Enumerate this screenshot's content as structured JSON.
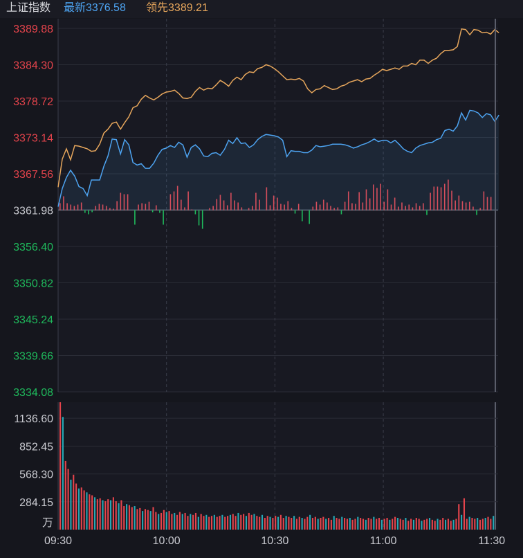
{
  "header": {
    "name": "上证指数",
    "latest_label": "最新",
    "latest_value": "3376.58",
    "lead_label": "领先",
    "lead_value": "3389.21"
  },
  "colors": {
    "background": "#15161d",
    "grid": "#2a2c36",
    "index_line": "#4da3f0",
    "lead_line": "#e6a65c",
    "up": "#e5444c",
    "down": "#1fba5c",
    "volume_teal": "#26a8b5",
    "axis_text": "#c9cad0"
  },
  "chart_data": [
    {
      "type": "line",
      "name": "price",
      "ylim": [
        3334.08,
        3389.88
      ],
      "base": 3361.98,
      "y_ticks": [
        {
          "label": "3389.88",
          "value": 3389.88,
          "color": "up"
        },
        {
          "label": "3384.30",
          "value": 3384.3,
          "color": "up"
        },
        {
          "label": "3378.72",
          "value": 3378.72,
          "color": "up"
        },
        {
          "label": "3373.14",
          "value": 3373.14,
          "color": "up"
        },
        {
          "label": "3367.56",
          "value": 3367.56,
          "color": "up"
        },
        {
          "label": "3361.98",
          "value": 3361.98,
          "color": "neutral"
        },
        {
          "label": "3356.40",
          "value": 3356.4,
          "color": "down"
        },
        {
          "label": "3350.82",
          "value": 3350.82,
          "color": "down"
        },
        {
          "label": "3345.24",
          "value": 3345.24,
          "color": "down"
        },
        {
          "label": "3339.66",
          "value": 3339.66,
          "color": "down"
        },
        {
          "label": "3334.08",
          "value": 3334.08,
          "color": "down"
        }
      ],
      "x_ticks": [
        {
          "label": "09:30",
          "minute": 0
        },
        {
          "label": "10:00",
          "minute": 30
        },
        {
          "label": "10:30",
          "minute": 60
        },
        {
          "label": "11:00",
          "minute": 90
        },
        {
          "label": "11:30",
          "minute": 120
        }
      ],
      "x_range": [
        0,
        121
      ],
      "series": [
        {
          "key": "index",
          "values": [
            3362.5,
            3365.3,
            3367.0,
            3368.1,
            3367.2,
            3365.6,
            3365.3,
            3364.2,
            3366.6,
            3366.6,
            3366.6,
            3368.7,
            3370.3,
            3372.9,
            3372.8,
            3370.6,
            3372.8,
            3372.0,
            3369.3,
            3368.9,
            3369.1,
            3368.4,
            3368.4,
            3369.2,
            3370.4,
            3371.3,
            3371.5,
            3371.9,
            3371.6,
            3372.4,
            3372.0,
            3370.1,
            3371.6,
            3372.0,
            3371.4,
            3370.3,
            3370.2,
            3370.7,
            3370.8,
            3370.4,
            3371.3,
            3372.7,
            3372.2,
            3373.1,
            3372.2,
            3372.3,
            3371.6,
            3372.0,
            3372.8,
            3373.3,
            3373.6,
            3373.5,
            3373.4,
            3373.2,
            3372.7,
            3370.2,
            3371.1,
            3371.0,
            3371.0,
            3370.8,
            3370.8,
            3371.2,
            3371.9,
            3371.7,
            3371.8,
            3371.9,
            3372.1,
            3372.1,
            3372.1,
            3372.0,
            3371.8,
            3371.5,
            3371.7,
            3372.0,
            3372.2,
            3372.5,
            3372.9,
            3372.5,
            3372.7,
            3372.7,
            3372.3,
            3372.7,
            3372.1,
            3371.4,
            3371.0,
            3370.8,
            3371.5,
            3371.9,
            3372.1,
            3372.3,
            3372.4,
            3372.8,
            3373.0,
            3374.2,
            3374.4,
            3374.1,
            3374.9,
            3376.9,
            3375.8,
            3377.3,
            3377.2,
            3376.9,
            3376.2,
            3376.8,
            3376.6,
            3375.6,
            3376.58
          ],
          "x_step": 1.1509
        },
        {
          "key": "lead",
          "values": [
            3365.5,
            3369.8,
            3371.4,
            3369.7,
            3371.9,
            3371.8,
            3371.6,
            3371.4,
            3371.0,
            3371.1,
            3372.1,
            3373.8,
            3374.4,
            3375.3,
            3375.5,
            3374.4,
            3375.4,
            3376.3,
            3377.7,
            3378.0,
            3379.0,
            3379.6,
            3379.2,
            3378.9,
            3379.3,
            3379.8,
            3380.1,
            3380.2,
            3380.4,
            3379.9,
            3379.2,
            3379.1,
            3379.3,
            3380.2,
            3380.8,
            3380.4,
            3380.7,
            3380.6,
            3381.2,
            3381.9,
            3381.5,
            3381.0,
            3381.9,
            3382.4,
            3382.0,
            3382.8,
            3383.2,
            3383.1,
            3383.7,
            3383.9,
            3384.3,
            3384.1,
            3383.7,
            3383.2,
            3382.6,
            3382.0,
            3382.1,
            3382.0,
            3382.2,
            3381.8,
            3380.6,
            3380.0,
            3380.5,
            3380.6,
            3381.1,
            3380.8,
            3380.5,
            3380.6,
            3381.0,
            3381.2,
            3381.6,
            3381.8,
            3382.0,
            3381.7,
            3382.1,
            3382.2,
            3382.7,
            3383.1,
            3383.6,
            3383.4,
            3383.6,
            3383.8,
            3383.6,
            3384.1,
            3384.1,
            3384.5,
            3384.3,
            3385.0,
            3385.0,
            3384.5,
            3385.0,
            3385.3,
            3386.0,
            3386.5,
            3386.5,
            3386.6,
            3387.1,
            3389.8,
            3389.7,
            3388.9,
            3389.7,
            3389.6,
            3389.2,
            3389.3,
            3389.0,
            3389.7,
            3389.21
          ],
          "x_step": 1.1509
        }
      ],
      "diff_bars": [
        1,
        2,
        1,
        0.8,
        0.6,
        0.8,
        1.1,
        -0.4,
        -0.6,
        -0.3,
        0.6,
        0.9,
        0.8,
        0.6,
        0.3,
        0.2,
        1.3,
        2.5,
        2.3,
        2.3,
        0,
        -2.1,
        0.8,
        1,
        0.9,
        1.2,
        -0.3,
        0.7,
        -0.4,
        -2.1,
        0,
        2.3,
        2.7,
        3.5,
        1.5,
        0.4,
        2.7,
        0.1,
        -0.6,
        -2.2,
        -2.7,
        0,
        0.3,
        0.6,
        1.6,
        2.2,
        1.4,
        0.7,
        2.5,
        1.4,
        1.1,
        0.4,
        0,
        0.3,
        0.6,
        2.5,
        1.5,
        0,
        3.3,
        0.7,
        2.1,
        1.8,
        0.9,
        0.8,
        1.3,
        0.3,
        -0.5,
        0.9,
        -1.6,
        0,
        -2.0,
        0.5,
        1.2,
        0.8,
        1.5,
        1.1,
        0.6,
        0.3,
        0.4,
        -0.6,
        1.2,
        2.7,
        1.0,
        0.9,
        2.6,
        1.1,
        3.0,
        1.7,
        3.7,
        3.2,
        3.8,
        1.2,
        3.0,
        0.8,
        1.8,
        0.5,
        1.1,
        0.6,
        0.8,
        0.4,
        1.0,
        0.6,
        1.0,
        -0.7,
        2.5,
        3.4,
        3.4,
        3.3,
        3.8,
        4.4,
        2.8,
        1.4,
        2.1,
        1.3,
        1.1,
        1.2,
        0.5,
        -0.7,
        0.3,
        2.7,
        1.9,
        1.9
      ]
    },
    {
      "type": "bar",
      "name": "volume",
      "unit": "万",
      "ylim": [
        0,
        1300
      ],
      "y_ticks": [
        {
          "label": "1136.60",
          "value": 1136.6
        },
        {
          "label": "852.45",
          "value": 852.45
        },
        {
          "label": "568.30",
          "value": 568.3
        },
        {
          "label": "284.15",
          "value": 284.15
        }
      ],
      "values": [
        1300,
        1150,
        700,
        620,
        510,
        560,
        470,
        420,
        430,
        400,
        380,
        360,
        350,
        330,
        310,
        320,
        300,
        290,
        310,
        300,
        330,
        290,
        270,
        300,
        240,
        260,
        250,
        230,
        240,
        210,
        220,
        190,
        210,
        200,
        190,
        230,
        180,
        160,
        170,
        200,
        180,
        190,
        160,
        170,
        150,
        180,
        160,
        170,
        140,
        160,
        150,
        170,
        130,
        160,
        140,
        150,
        130,
        140,
        150,
        130,
        140,
        150,
        130,
        140,
        150,
        160,
        140,
        170,
        150,
        160,
        140,
        170,
        150,
        160,
        140,
        130,
        150,
        120,
        140,
        130,
        120,
        140,
        130,
        150,
        120,
        140,
        130,
        120,
        140,
        110,
        130,
        120,
        110,
        130,
        150,
        120,
        130,
        110,
        120,
        130,
        110,
        120,
        100,
        140,
        120,
        110,
        130,
        120,
        110,
        120,
        100,
        110,
        130,
        120,
        110,
        100,
        120,
        110,
        130,
        110,
        120,
        100,
        110,
        120,
        100,
        110,
        130,
        120,
        110,
        100,
        120,
        90,
        110,
        100,
        120,
        110,
        90,
        100,
        110,
        120,
        100,
        90,
        110,
        100,
        120,
        100,
        110,
        90,
        100,
        110,
        260,
        150,
        320,
        110,
        130,
        120,
        110,
        120,
        100,
        110,
        120,
        130,
        110,
        140
      ]
    }
  ]
}
